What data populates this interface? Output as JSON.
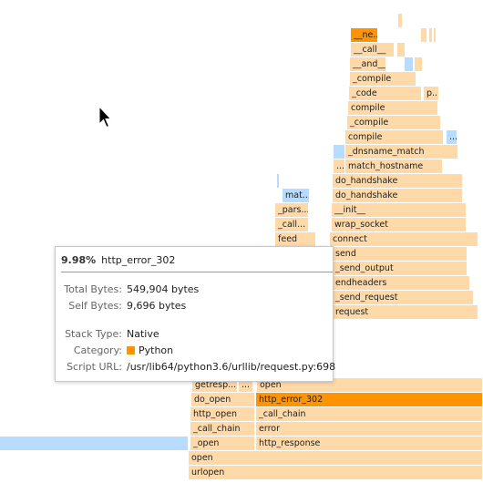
{
  "colors": {
    "frame_python": "#ffd9a8",
    "frame_native": "#b8dcff",
    "frame_selected": "#ff9400"
  },
  "frames": [
    {
      "id": "urlopen",
      "label": "urlopen",
      "kind": "python"
    },
    {
      "id": "open-1",
      "label": "open",
      "kind": "python"
    },
    {
      "id": "open-native-left",
      "label": "",
      "kind": "native"
    },
    {
      "id": "_open",
      "label": "_open",
      "kind": "python"
    },
    {
      "id": "http_response",
      "label": "http_response",
      "kind": "python"
    },
    {
      "id": "_call_chain-1",
      "label": "_call_chain",
      "kind": "python"
    },
    {
      "id": "error",
      "label": "error",
      "kind": "python"
    },
    {
      "id": "http_open",
      "label": "http_open",
      "kind": "python"
    },
    {
      "id": "_call_chain-2",
      "label": "_call_chain",
      "kind": "python"
    },
    {
      "id": "do_open",
      "label": "do_open",
      "kind": "python"
    },
    {
      "id": "http_error_302",
      "label": "http_error_302",
      "kind": "selected"
    },
    {
      "id": "getresp",
      "label": "getresp...",
      "kind": "python"
    },
    {
      "id": "getresp-small",
      "label": "...",
      "kind": "python"
    },
    {
      "id": "open-2",
      "label": "open",
      "kind": "python"
    },
    {
      "id": "request",
      "label": "request",
      "kind": "python"
    },
    {
      "id": "send_request",
      "label": "_send_request",
      "kind": "python"
    },
    {
      "id": "endheaders",
      "label": "endheaders",
      "kind": "python"
    },
    {
      "id": "send_output",
      "label": "_send_output",
      "kind": "python"
    },
    {
      "id": "send",
      "label": "send",
      "kind": "python"
    },
    {
      "id": "feed",
      "label": "feed",
      "kind": "python"
    },
    {
      "id": "connect",
      "label": "connect",
      "kind": "python"
    },
    {
      "id": "call-mid",
      "label": "_call...",
      "kind": "python"
    },
    {
      "id": "wrap_socket",
      "label": "wrap_socket",
      "kind": "python"
    },
    {
      "id": "pars",
      "label": "_pars...",
      "kind": "python"
    },
    {
      "id": "init",
      "label": "__init__",
      "kind": "python"
    },
    {
      "id": "mat",
      "label": "mat...",
      "kind": "native"
    },
    {
      "id": "do_handshake-1",
      "label": "do_handshake",
      "kind": "python"
    },
    {
      "id": "do_handshake-2",
      "label": "do_handshake",
      "kind": "python"
    },
    {
      "id": "match_hostname-dots",
      "label": "...",
      "kind": "python"
    },
    {
      "id": "match_hostname",
      "label": "match_hostname",
      "kind": "python"
    },
    {
      "id": "dnsname-native",
      "label": "",
      "kind": "native"
    },
    {
      "id": "dnsname_match",
      "label": "_dnsname_match",
      "kind": "python"
    },
    {
      "id": "compile-1",
      "label": "compile",
      "kind": "python"
    },
    {
      "id": "compile-native",
      "label": "...",
      "kind": "native"
    },
    {
      "id": "_compile-1",
      "label": "_compile",
      "kind": "python"
    },
    {
      "id": "compile-2",
      "label": "compile",
      "kind": "python"
    },
    {
      "id": "_code",
      "label": "_code",
      "kind": "python"
    },
    {
      "id": "p-dots",
      "label": "p...",
      "kind": "python"
    },
    {
      "id": "_compile-2",
      "label": "_compile",
      "kind": "python"
    },
    {
      "id": "and",
      "label": "__and__",
      "kind": "python"
    },
    {
      "id": "call-top",
      "label": "__call__",
      "kind": "python"
    },
    {
      "id": "ne",
      "label": "__ne...",
      "kind": "selected"
    },
    {
      "id": "tiny-1",
      "label": "",
      "kind": "python"
    },
    {
      "id": "tiny-2",
      "label": "",
      "kind": "python"
    },
    {
      "id": "tiny-3",
      "label": "",
      "kind": "native"
    },
    {
      "id": "tiny-4",
      "label": "",
      "kind": "python"
    },
    {
      "id": "tiny-5",
      "label": "",
      "kind": "python"
    },
    {
      "id": "tiny-6",
      "label": "",
      "kind": "python"
    },
    {
      "id": "tiny-7",
      "label": "",
      "kind": "python"
    },
    {
      "id": "tiny-8",
      "label": "",
      "kind": "python"
    },
    {
      "id": "tiny-9",
      "label": "",
      "kind": "native"
    }
  ],
  "tooltip": {
    "percent": "9.98%",
    "function": "http_error_302",
    "total_label": "Total Bytes:",
    "total_value": "549,904 bytes",
    "self_label": "Self Bytes:",
    "self_value": "9,696 bytes",
    "stack_label": "Stack Type:",
    "stack_value": "Native",
    "category_label": "Category:",
    "category_value": "Python",
    "script_label": "Script URL:",
    "script_value": "/usr/lib64/python3.6/urllib/request.py:698"
  }
}
